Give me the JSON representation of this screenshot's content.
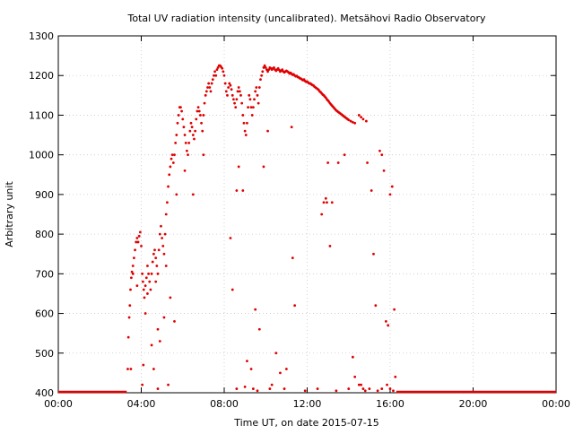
{
  "chart_data": {
    "type": "scatter",
    "title": "Total UV radiation intensity (uncalibrated). Metsähovi Radio Observatory",
    "xlabel": "Time UT, on date 2015-07-15",
    "ylabel": "Arbitrary unit",
    "xlim_hours": [
      0,
      24
    ],
    "ylim": [
      400,
      1300
    ],
    "x_ticks": [
      {
        "hour": 0,
        "label": "00:00"
      },
      {
        "hour": 4,
        "label": "04:00"
      },
      {
        "hour": 8,
        "label": "08:00"
      },
      {
        "hour": 12,
        "label": "12:00"
      },
      {
        "hour": 16,
        "label": "16:00"
      },
      {
        "hour": 20,
        "label": "20:00"
      },
      {
        "hour": 24,
        "label": "00:00"
      }
    ],
    "y_ticks": [
      400,
      500,
      600,
      700,
      800,
      900,
      1000,
      1100,
      1200,
      1300
    ],
    "grid": true,
    "marker_color": "#e00000",
    "baseline_segments": [
      {
        "from_hour": 0.0,
        "to_hour": 3.3,
        "value": 400
      },
      {
        "from_hour": 16.3,
        "to_hour": 24.0,
        "value": 400
      }
    ],
    "points": [
      [
        3.35,
        460
      ],
      [
        3.38,
        540
      ],
      [
        3.42,
        590
      ],
      [
        3.45,
        620
      ],
      [
        3.48,
        660
      ],
      [
        3.52,
        690
      ],
      [
        3.55,
        705
      ],
      [
        3.6,
        720
      ],
      [
        3.65,
        740
      ],
      [
        3.7,
        760
      ],
      [
        3.75,
        780
      ],
      [
        3.8,
        790
      ],
      [
        3.85,
        780
      ],
      [
        3.9,
        795
      ],
      [
        3.95,
        805
      ],
      [
        4.0,
        770
      ],
      [
        4.05,
        700
      ],
      [
        4.08,
        680
      ],
      [
        4.12,
        660
      ],
      [
        4.15,
        640
      ],
      [
        4.2,
        670
      ],
      [
        4.25,
        690
      ],
      [
        4.3,
        720
      ],
      [
        4.35,
        700
      ],
      [
        4.4,
        680
      ],
      [
        4.45,
        660
      ],
      [
        4.5,
        700
      ],
      [
        4.55,
        730
      ],
      [
        4.6,
        750
      ],
      [
        4.65,
        760
      ],
      [
        4.7,
        740
      ],
      [
        4.75,
        720
      ],
      [
        4.8,
        700
      ],
      [
        4.85,
        760
      ],
      [
        4.9,
        800
      ],
      [
        4.95,
        820
      ],
      [
        5.0,
        790
      ],
      [
        5.05,
        770
      ],
      [
        5.1,
        750
      ],
      [
        5.15,
        800
      ],
      [
        5.2,
        850
      ],
      [
        5.25,
        880
      ],
      [
        5.3,
        920
      ],
      [
        5.35,
        950
      ],
      [
        5.4,
        970
      ],
      [
        5.45,
        990
      ],
      [
        5.5,
        1000
      ],
      [
        5.55,
        980
      ],
      [
        5.6,
        1000
      ],
      [
        5.65,
        1030
      ],
      [
        5.7,
        1050
      ],
      [
        5.75,
        1080
      ],
      [
        5.8,
        1100
      ],
      [
        5.85,
        1120
      ],
      [
        5.9,
        1120
      ],
      [
        5.95,
        1110
      ],
      [
        6.0,
        1090
      ],
      [
        6.05,
        1070
      ],
      [
        6.1,
        1050
      ],
      [
        6.15,
        1030
      ],
      [
        6.2,
        1010
      ],
      [
        6.25,
        1000
      ],
      [
        6.3,
        1030
      ],
      [
        6.35,
        1060
      ],
      [
        6.4,
        1080
      ],
      [
        6.45,
        1070
      ],
      [
        6.5,
        1050
      ],
      [
        6.55,
        1040
      ],
      [
        6.6,
        1060
      ],
      [
        6.65,
        1090
      ],
      [
        6.7,
        1110
      ],
      [
        6.75,
        1120
      ],
      [
        6.8,
        1110
      ],
      [
        6.85,
        1100
      ],
      [
        6.9,
        1080
      ],
      [
        6.95,
        1060
      ],
      [
        7.0,
        1100
      ],
      [
        7.05,
        1130
      ],
      [
        7.1,
        1150
      ],
      [
        7.15,
        1160
      ],
      [
        7.2,
        1170
      ],
      [
        7.25,
        1180
      ],
      [
        7.3,
        1170
      ],
      [
        7.35,
        1160
      ],
      [
        7.4,
        1180
      ],
      [
        7.45,
        1190
      ],
      [
        7.5,
        1200
      ],
      [
        7.55,
        1210
      ],
      [
        7.6,
        1200
      ],
      [
        7.65,
        1215
      ],
      [
        7.7,
        1220
      ],
      [
        7.75,
        1225
      ],
      [
        7.8,
        1225
      ],
      [
        7.85,
        1222
      ],
      [
        7.9,
        1218
      ],
      [
        7.95,
        1210
      ],
      [
        8.0,
        1200
      ],
      [
        8.05,
        1180
      ],
      [
        8.1,
        1160
      ],
      [
        8.15,
        1150
      ],
      [
        8.2,
        1170
      ],
      [
        8.25,
        1180
      ],
      [
        8.3,
        1175
      ],
      [
        8.35,
        1165
      ],
      [
        8.4,
        1150
      ],
      [
        8.45,
        1140
      ],
      [
        8.5,
        1130
      ],
      [
        8.55,
        1120
      ],
      [
        8.6,
        1140
      ],
      [
        8.65,
        1160
      ],
      [
        8.7,
        1170
      ],
      [
        8.75,
        1160
      ],
      [
        8.8,
        1150
      ],
      [
        8.85,
        1130
      ],
      [
        8.9,
        1100
      ],
      [
        8.95,
        1080
      ],
      [
        9.0,
        1060
      ],
      [
        9.05,
        1050
      ],
      [
        9.1,
        1080
      ],
      [
        9.15,
        1120
      ],
      [
        9.2,
        1150
      ],
      [
        9.25,
        1140
      ],
      [
        9.3,
        1120
      ],
      [
        9.35,
        1100
      ],
      [
        9.4,
        1120
      ],
      [
        9.45,
        1140
      ],
      [
        9.5,
        1160
      ],
      [
        9.55,
        1170
      ],
      [
        9.6,
        1150
      ],
      [
        9.65,
        1130
      ],
      [
        9.7,
        1170
      ],
      [
        9.75,
        1190
      ],
      [
        9.8,
        1200
      ],
      [
        9.85,
        1210
      ],
      [
        9.9,
        1220
      ],
      [
        9.95,
        1225
      ],
      [
        10.0,
        1220
      ],
      [
        10.05,
        1215
      ],
      [
        10.1,
        1210
      ],
      [
        10.15,
        1215
      ],
      [
        10.2,
        1220
      ],
      [
        10.25,
        1218
      ],
      [
        10.3,
        1215
      ],
      [
        10.35,
        1218
      ],
      [
        10.4,
        1220
      ],
      [
        10.45,
        1215
      ],
      [
        10.5,
        1212
      ],
      [
        10.55,
        1215
      ],
      [
        10.6,
        1218
      ],
      [
        10.65,
        1214
      ],
      [
        10.7,
        1210
      ],
      [
        10.75,
        1212
      ],
      [
        10.8,
        1215
      ],
      [
        10.85,
        1210
      ],
      [
        10.9,
        1208
      ],
      [
        10.95,
        1210
      ],
      [
        11.0,
        1212
      ],
      [
        11.05,
        1210
      ],
      [
        11.1,
        1208
      ],
      [
        11.15,
        1205
      ],
      [
        11.2,
        1207
      ],
      [
        11.25,
        1204
      ],
      [
        11.3,
        1202
      ],
      [
        11.35,
        1203
      ],
      [
        11.4,
        1200
      ],
      [
        11.45,
        1198
      ],
      [
        11.5,
        1199
      ],
      [
        11.55,
        1196
      ],
      [
        11.6,
        1195
      ],
      [
        11.65,
        1193
      ],
      [
        11.7,
        1192
      ],
      [
        11.75,
        1190
      ],
      [
        11.8,
        1188
      ],
      [
        11.85,
        1190
      ],
      [
        11.9,
        1186
      ],
      [
        11.95,
        1184
      ],
      [
        12.0,
        1185
      ],
      [
        12.05,
        1182
      ],
      [
        12.1,
        1180
      ],
      [
        12.15,
        1180
      ],
      [
        12.2,
        1178
      ],
      [
        12.25,
        1176
      ],
      [
        12.3,
        1175
      ],
      [
        12.35,
        1172
      ],
      [
        12.4,
        1170
      ],
      [
        12.45,
        1168
      ],
      [
        12.5,
        1166
      ],
      [
        12.55,
        1164
      ],
      [
        12.6,
        1160
      ],
      [
        12.65,
        1158
      ],
      [
        12.7,
        1155
      ],
      [
        12.75,
        1152
      ],
      [
        12.8,
        1150
      ],
      [
        12.85,
        1147
      ],
      [
        12.9,
        1144
      ],
      [
        12.95,
        1140
      ],
      [
        13.0,
        1137
      ],
      [
        13.05,
        1134
      ],
      [
        13.1,
        1130
      ],
      [
        13.15,
        1127
      ],
      [
        13.2,
        1124
      ],
      [
        13.25,
        1121
      ],
      [
        13.3,
        1118
      ],
      [
        13.35,
        1115
      ],
      [
        13.4,
        1112
      ],
      [
        13.45,
        1110
      ],
      [
        13.5,
        1108
      ],
      [
        13.55,
        1106
      ],
      [
        13.6,
        1104
      ],
      [
        13.65,
        1102
      ],
      [
        13.7,
        1100
      ],
      [
        13.75,
        1098
      ],
      [
        13.8,
        1096
      ],
      [
        13.85,
        1094
      ],
      [
        13.9,
        1092
      ],
      [
        13.95,
        1090
      ],
      [
        14.0,
        1088
      ],
      [
        14.1,
        1085
      ],
      [
        14.2,
        1082
      ],
      [
        14.3,
        1080
      ],
      [
        14.5,
        1100
      ],
      [
        14.6,
        1095
      ],
      [
        14.7,
        1090
      ],
      [
        14.85,
        1085
      ],
      [
        3.5,
        460
      ],
      [
        3.6,
        700
      ],
      [
        3.8,
        670
      ],
      [
        4.1,
        470
      ],
      [
        4.2,
        600
      ],
      [
        4.3,
        650
      ],
      [
        4.5,
        520
      ],
      [
        4.6,
        460
      ],
      [
        4.7,
        680
      ],
      [
        4.8,
        560
      ],
      [
        4.9,
        530
      ],
      [
        5.1,
        590
      ],
      [
        5.2,
        720
      ],
      [
        5.4,
        640
      ],
      [
        5.6,
        580
      ],
      [
        5.7,
        900
      ],
      [
        6.1,
        960
      ],
      [
        6.5,
        900
      ],
      [
        7.0,
        1000
      ],
      [
        8.3,
        790
      ],
      [
        8.4,
        660
      ],
      [
        8.6,
        910
      ],
      [
        8.7,
        970
      ],
      [
        8.9,
        910
      ],
      [
        9.1,
        480
      ],
      [
        9.3,
        460
      ],
      [
        9.5,
        610
      ],
      [
        9.7,
        560
      ],
      [
        9.9,
        970
      ],
      [
        10.1,
        1060
      ],
      [
        10.3,
        420
      ],
      [
        10.5,
        500
      ],
      [
        10.7,
        450
      ],
      [
        11.0,
        460
      ],
      [
        11.25,
        1070
      ],
      [
        11.3,
        740
      ],
      [
        11.4,
        620
      ],
      [
        12.7,
        850
      ],
      [
        12.8,
        880
      ],
      [
        12.9,
        890
      ],
      [
        12.95,
        880
      ],
      [
        13.0,
        980
      ],
      [
        13.1,
        770
      ],
      [
        13.2,
        880
      ],
      [
        13.5,
        980
      ],
      [
        13.8,
        1000
      ],
      [
        14.2,
        490
      ],
      [
        14.3,
        440
      ],
      [
        14.5,
        420
      ],
      [
        14.9,
        980
      ],
      [
        15.1,
        910
      ],
      [
        15.2,
        750
      ],
      [
        15.3,
        620
      ],
      [
        15.5,
        1010
      ],
      [
        15.6,
        1000
      ],
      [
        15.7,
        960
      ],
      [
        15.8,
        580
      ],
      [
        15.9,
        570
      ],
      [
        16.0,
        900
      ],
      [
        16.1,
        920
      ],
      [
        16.2,
        610
      ],
      [
        16.25,
        440
      ],
      [
        4.05,
        420
      ],
      [
        4.8,
        410
      ],
      [
        5.3,
        420
      ],
      [
        8.6,
        410
      ],
      [
        9.0,
        415
      ],
      [
        9.4,
        410
      ],
      [
        9.6,
        405
      ],
      [
        10.2,
        410
      ],
      [
        10.9,
        410
      ],
      [
        11.9,
        405
      ],
      [
        12.5,
        410
      ],
      [
        13.4,
        405
      ],
      [
        14.0,
        410
      ],
      [
        14.6,
        420
      ],
      [
        14.7,
        410
      ],
      [
        14.8,
        405
      ],
      [
        15.0,
        410
      ],
      [
        15.4,
        405
      ],
      [
        15.6,
        410
      ],
      [
        15.85,
        420
      ],
      [
        16.0,
        410
      ],
      [
        16.15,
        405
      ]
    ]
  }
}
